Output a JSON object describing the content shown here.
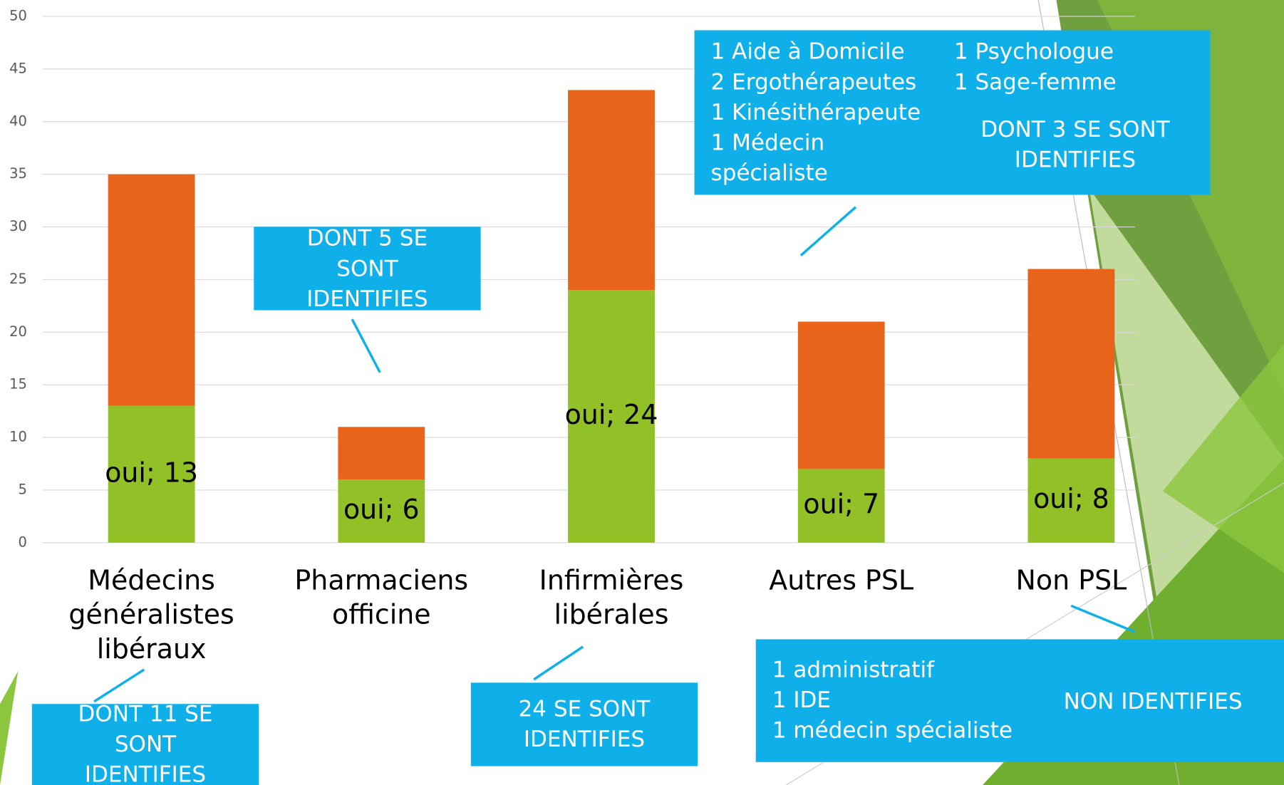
{
  "chart_data": {
    "type": "bar",
    "stacked": true,
    "categories": [
      "Médecins généralistes libéraux",
      "Pharmaciens officine",
      "Infirmières libérales",
      "Autres PSL",
      "Non PSL"
    ],
    "series": [
      {
        "color": "#92c027",
        "values": [
          13,
          6,
          24,
          7,
          8
        ],
        "value_labels": [
          "oui; 13",
          "oui; 6",
          "oui; 24",
          "oui; 7",
          "oui; 8"
        ]
      },
      {
        "color": "#e8641b",
        "values": [
          22,
          5,
          19,
          14,
          18
        ]
      }
    ],
    "ylim": [
      0,
      50
    ],
    "yticks": [
      0,
      5,
      10,
      15,
      20,
      25,
      30,
      35,
      40,
      45,
      50
    ],
    "grid": true,
    "annotations": [
      {
        "text": "DONT 11 SE SONT IDENTIFIES"
      },
      {
        "text": "DONT 5 SE SONT IDENTIFIES"
      },
      {
        "text": "24 SE SONT IDENTIFIES"
      },
      {
        "left": [
          "1 Aide à Domicile",
          "2 Ergothérapeutes",
          "1 Kinésithérapeute",
          "1 Médecin spécialiste"
        ],
        "right": [
          "1 Psychologue",
          "1 Sage-femme"
        ],
        "text": "DONT 3 SE SONT IDENTIFIES"
      },
      {
        "left": [
          "1 administratif",
          "1 IDE",
          "1 médecin spécialiste"
        ],
        "text": "NON IDENTIFIES"
      }
    ]
  }
}
